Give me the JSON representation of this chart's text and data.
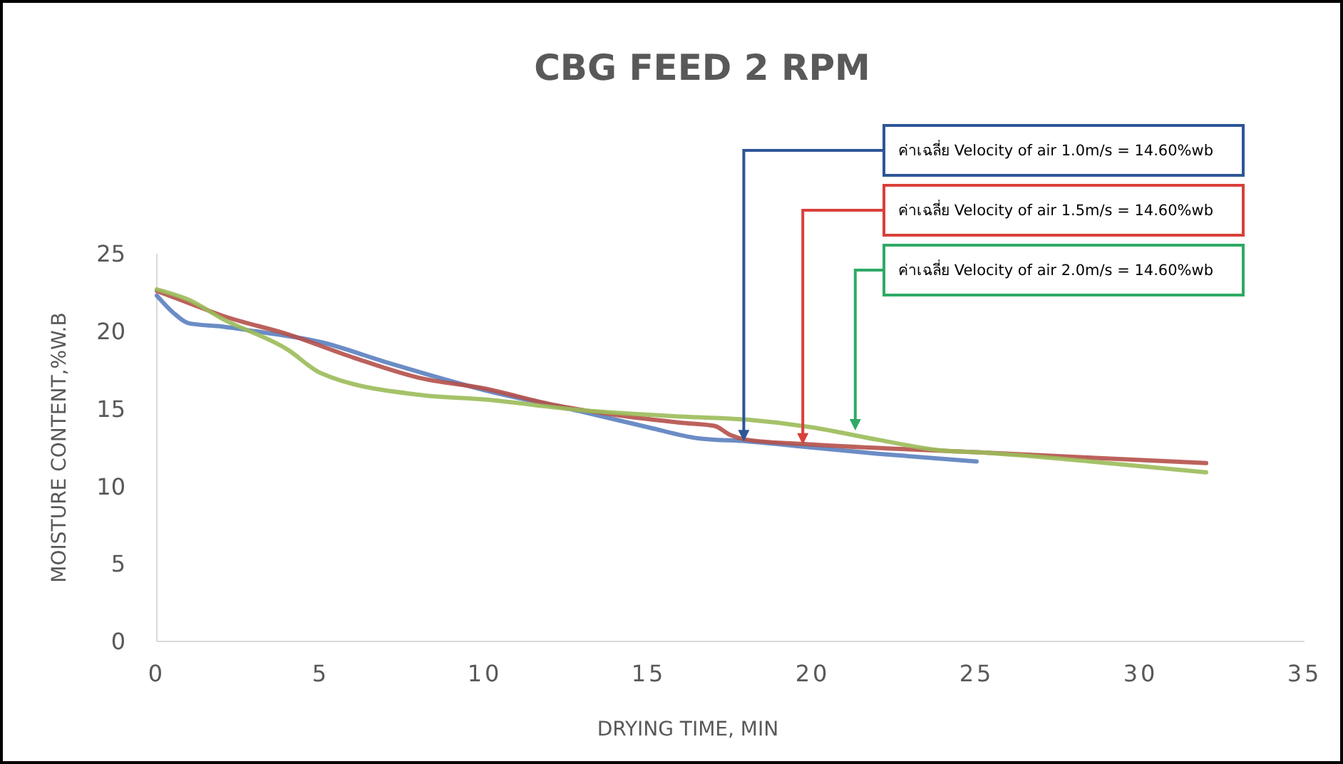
{
  "chart_data": {
    "type": "line",
    "title": "CBG FEED 2 RPM",
    "xlabel": "DRYING TIME, MIN",
    "ylabel": "MOISTURE CONTENT,%W.B",
    "xlim": [
      0,
      35
    ],
    "xticks": [
      0,
      5,
      10,
      15,
      20,
      25,
      30,
      35
    ],
    "ylim": [
      0,
      25
    ],
    "yticks": [
      0,
      5,
      10,
      15,
      20,
      25
    ],
    "grid": false,
    "marker": "none",
    "line_style": "solid",
    "series": [
      {
        "color": "#5b7fbf",
        "x": [
          0,
          0.5,
          1,
          2,
          3,
          5,
          7,
          10,
          13,
          15,
          16.5,
          18,
          20,
          22,
          25
        ],
        "values": [
          22.3,
          21.2,
          20.5,
          20.3,
          20,
          19.3,
          18,
          16.2,
          14.8,
          13.8,
          13.1,
          12.9,
          12.5,
          12.1,
          11.6
        ]
      },
      {
        "color": "#b5504a",
        "x": [
          0,
          1,
          2,
          4,
          6,
          8,
          10,
          12,
          14,
          16,
          17,
          17.5,
          18,
          20,
          25,
          32
        ],
        "values": [
          22.6,
          21.8,
          21,
          19.8,
          18.3,
          17,
          16.3,
          15.3,
          14.6,
          14.1,
          13.9,
          13.3,
          13,
          12.7,
          12.2,
          11.5
        ]
      },
      {
        "color": "#9bbb59",
        "x": [
          0,
          1,
          2,
          4,
          5,
          8,
          10,
          13,
          16,
          18,
          20,
          22,
          24,
          25,
          28,
          32
        ],
        "values": [
          22.7,
          22,
          20.8,
          18.8,
          17.3,
          15.9,
          15.6,
          14.9,
          14.5,
          14.3,
          13.8,
          13,
          12.3,
          12.2,
          11.7,
          10.9
        ]
      }
    ],
    "annotations": [
      {
        "text": "ค่าเฉลี่ย Velocity of air 1.0m/s = 14.60%wb",
        "x": 17.9,
        "y": 12.9
      },
      {
        "text": "ค่าเฉลี่ย Velocity of air 1.5m/s = 14.60%wb",
        "x": 19.7,
        "y": 12.7
      },
      {
        "text": "ค่าเฉลี่ย Velocity of air 2.0m/s = 14.60%wb",
        "x": 21.3,
        "y": 13.6
      }
    ]
  }
}
